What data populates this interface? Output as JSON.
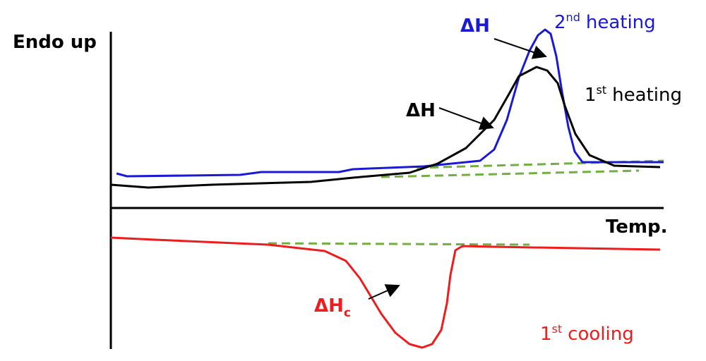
{
  "y_axis_label": "Endo up",
  "x_axis_label": "Temp.",
  "second_heating": {
    "delta_label": "ΔH",
    "number": "2",
    "suffix": "nd",
    "text": "heating"
  },
  "first_heating": {
    "delta_label": "ΔH",
    "number": "1",
    "suffix": "st",
    "text": "heating"
  },
  "first_cooling": {
    "delta_label": "ΔH",
    "delta_subscript": "c",
    "number": "1",
    "suffix": "st",
    "text": "cooling"
  }
}
